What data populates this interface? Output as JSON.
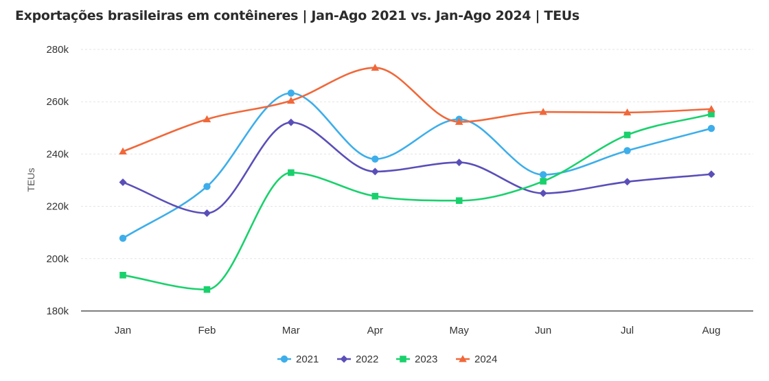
{
  "chart_data": {
    "type": "line",
    "title": "Exportações brasileiras em contêineres | Jan-Ago 2021 vs. Jan-Ago 2024 | TEUs",
    "xlabel": "",
    "ylabel": "TEUs",
    "categories": [
      "Jan",
      "Feb",
      "Mar",
      "Apr",
      "May",
      "Jun",
      "Jul",
      "Aug"
    ],
    "ylim": [
      180000,
      280000
    ],
    "yticks": [
      180000,
      200000,
      220000,
      240000,
      260000,
      280000
    ],
    "ytick_labels": [
      "180k",
      "200k",
      "220k",
      "240k",
      "260k",
      "280k"
    ],
    "grid": true,
    "legend_position": "bottom-center",
    "series": [
      {
        "name": "2021",
        "color": "#3daeea",
        "marker": "circle",
        "values": [
          207800,
          227600,
          263300,
          238100,
          253300,
          232100,
          241300,
          249800
        ]
      },
      {
        "name": "2022",
        "color": "#5a4fb8",
        "marker": "diamond",
        "values": [
          229200,
          217400,
          252100,
          233300,
          236800,
          225000,
          229400,
          232300
        ]
      },
      {
        "name": "2023",
        "color": "#19d16c",
        "marker": "square",
        "values": [
          193700,
          188200,
          232900,
          223900,
          222200,
          229600,
          247300,
          255300
        ]
      },
      {
        "name": "2024",
        "color": "#f0683a",
        "marker": "triangle",
        "values": [
          241000,
          253300,
          260400,
          273000,
          252300,
          256100,
          255900,
          257200
        ]
      }
    ]
  }
}
